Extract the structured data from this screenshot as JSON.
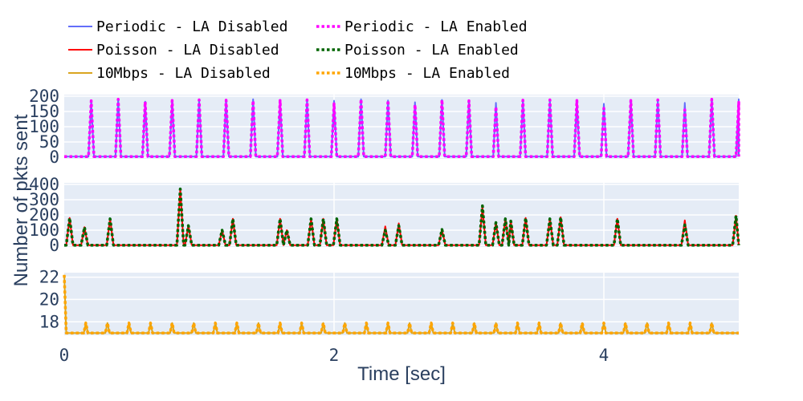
{
  "chart_data": {
    "type": "line",
    "xlabel": "Time [sec]",
    "ylabel": "Number of pkts sent",
    "xlim": [
      0,
      5
    ],
    "x_ticks": [
      0,
      2,
      4
    ],
    "grid": true,
    "legend_placement": "top",
    "plot_background": "#e5ecf6",
    "legend": [
      {
        "name": "Periodic - LA Disabled",
        "color": "#636efa",
        "dash": "solid"
      },
      {
        "name": "Periodic - LA Enabled",
        "color": "#ff00ff",
        "dash": "dot"
      },
      {
        "name": "Poisson - LA Disabled",
        "color": "#ff0000",
        "dash": "solid"
      },
      {
        "name": "Poisson - LA Enabled",
        "color": "#006400",
        "dash": "dot"
      },
      {
        "name": "10Mbps - LA Disabled",
        "color": "#daa520",
        "dash": "solid"
      },
      {
        "name": "10Mbps - LA Enabled",
        "color": "#ffa500",
        "dash": "dot"
      }
    ],
    "subplots": [
      {
        "ylim": [
          -5,
          205
        ],
        "y_ticks": [
          0,
          50,
          100,
          150,
          200
        ],
        "peak_width": 0.02,
        "baseline": 2,
        "series": [
          {
            "name": "Periodic - LA Disabled",
            "color": "#636efa",
            "dash": "solid",
            "peaks": [
              [
                0.2,
                185
              ],
              [
                0.4,
                190
              ],
              [
                0.6,
                182
              ],
              [
                0.8,
                186
              ],
              [
                1.0,
                188
              ],
              [
                1.2,
                187
              ],
              [
                1.4,
                190
              ],
              [
                1.6,
                186
              ],
              [
                1.8,
                188
              ],
              [
                2.0,
                185
              ],
              [
                2.2,
                190
              ],
              [
                2.4,
                186
              ],
              [
                2.6,
                180
              ],
              [
                2.8,
                188
              ],
              [
                3.0,
                185
              ],
              [
                3.2,
                178
              ],
              [
                3.4,
                187
              ],
              [
                3.6,
                188
              ],
              [
                3.8,
                186
              ],
              [
                4.0,
                175
              ],
              [
                4.2,
                186
              ],
              [
                4.4,
                188
              ],
              [
                4.6,
                178
              ],
              [
                4.8,
                190
              ],
              [
                5.0,
                190
              ]
            ]
          },
          {
            "name": "Periodic - LA Enabled",
            "color": "#ff00ff",
            "dash": "dot",
            "peaks": [
              [
                0.2,
                185
              ],
              [
                0.4,
                190
              ],
              [
                0.6,
                182
              ],
              [
                0.8,
                186
              ],
              [
                1.0,
                188
              ],
              [
                1.2,
                187
              ],
              [
                1.4,
                185
              ],
              [
                1.6,
                186
              ],
              [
                1.8,
                188
              ],
              [
                2.0,
                175
              ],
              [
                2.2,
                190
              ],
              [
                2.4,
                186
              ],
              [
                2.6,
                172
              ],
              [
                2.8,
                188
              ],
              [
                3.0,
                185
              ],
              [
                3.2,
                165
              ],
              [
                3.4,
                187
              ],
              [
                3.6,
                188
              ],
              [
                3.8,
                186
              ],
              [
                4.0,
                160
              ],
              [
                4.2,
                186
              ],
              [
                4.4,
                188
              ],
              [
                4.6,
                155
              ],
              [
                4.8,
                190
              ],
              [
                5.0,
                180
              ]
            ]
          }
        ]
      },
      {
        "ylim": [
          -10,
          410
        ],
        "y_ticks": [
          0,
          100,
          200,
          300,
          400
        ],
        "peak_width": 0.025,
        "baseline": 2,
        "series": [
          {
            "name": "Poisson - LA Disabled",
            "color": "#ff0000",
            "dash": "solid",
            "peaks": [
              [
                0.04,
                180
              ],
              [
                0.15,
                120
              ],
              [
                0.34,
                175
              ],
              [
                0.86,
                370
              ],
              [
                0.92,
                130
              ],
              [
                1.17,
                100
              ],
              [
                1.25,
                175
              ],
              [
                1.6,
                175
              ],
              [
                1.65,
                100
              ],
              [
                1.83,
                175
              ],
              [
                1.92,
                175
              ],
              [
                2.02,
                175
              ],
              [
                2.38,
                125
              ],
              [
                2.48,
                145
              ],
              [
                2.8,
                105
              ],
              [
                3.1,
                250
              ],
              [
                3.2,
                150
              ],
              [
                3.27,
                175
              ],
              [
                3.31,
                160
              ],
              [
                3.42,
                180
              ],
              [
                3.6,
                175
              ],
              [
                3.68,
                185
              ],
              [
                4.1,
                175
              ],
              [
                4.6,
                165
              ],
              [
                4.98,
                195
              ]
            ]
          },
          {
            "name": "Poisson - LA Enabled",
            "color": "#006400",
            "dash": "dot",
            "peaks": [
              [
                0.04,
                180
              ],
              [
                0.15,
                120
              ],
              [
                0.34,
                175
              ],
              [
                0.86,
                370
              ],
              [
                0.92,
                130
              ],
              [
                1.17,
                100
              ],
              [
                1.25,
                175
              ],
              [
                1.6,
                175
              ],
              [
                1.65,
                100
              ],
              [
                1.83,
                175
              ],
              [
                1.92,
                175
              ],
              [
                2.02,
                175
              ],
              [
                2.38,
                100
              ],
              [
                2.48,
                130
              ],
              [
                2.8,
                105
              ],
              [
                3.1,
                260
              ],
              [
                3.2,
                150
              ],
              [
                3.27,
                175
              ],
              [
                3.31,
                160
              ],
              [
                3.42,
                180
              ],
              [
                3.6,
                175
              ],
              [
                3.68,
                185
              ],
              [
                4.1,
                175
              ],
              [
                4.6,
                135
              ],
              [
                4.98,
                195
              ]
            ]
          }
        ]
      },
      {
        "ylim": [
          16.8,
          22.4
        ],
        "y_ticks": [
          18,
          20,
          22
        ],
        "peak_width": 0.015,
        "baseline": 17,
        "series": [
          {
            "name": "10Mbps - LA Disabled",
            "color": "#daa520",
            "dash": "solid",
            "start": [
              0.0,
              22.2
            ],
            "peaks": [
              [
                0.16,
                17.9
              ],
              [
                0.32,
                17.9
              ],
              [
                0.48,
                17.9
              ],
              [
                0.64,
                17.9
              ],
              [
                0.8,
                17.9
              ],
              [
                0.96,
                17.9
              ],
              [
                1.12,
                17.9
              ],
              [
                1.28,
                17.9
              ],
              [
                1.44,
                17.9
              ],
              [
                1.6,
                17.9
              ],
              [
                1.76,
                17.9
              ],
              [
                1.92,
                17.9
              ],
              [
                2.08,
                17.9
              ],
              [
                2.24,
                17.9
              ],
              [
                2.4,
                17.9
              ],
              [
                2.56,
                17.9
              ],
              [
                2.72,
                17.9
              ],
              [
                2.88,
                17.9
              ],
              [
                3.04,
                17.9
              ],
              [
                3.2,
                17.9
              ],
              [
                3.36,
                17.9
              ],
              [
                3.52,
                17.9
              ],
              [
                3.68,
                17.9
              ],
              [
                3.84,
                17.9
              ],
              [
                4.0,
                17.9
              ],
              [
                4.16,
                17.9
              ],
              [
                4.32,
                17.9
              ],
              [
                4.48,
                17.9
              ],
              [
                4.64,
                17.9
              ],
              [
                4.8,
                17.9
              ]
            ]
          },
          {
            "name": "10Mbps - LA Enabled",
            "color": "#ffa500",
            "dash": "dot",
            "start": [
              0.0,
              22.2
            ],
            "peaks": [
              [
                0.16,
                17.9
              ],
              [
                0.32,
                17.9
              ],
              [
                0.48,
                17.9
              ],
              [
                0.64,
                17.9
              ],
              [
                0.8,
                17.9
              ],
              [
                0.96,
                17.9
              ],
              [
                1.12,
                17.9
              ],
              [
                1.28,
                17.9
              ],
              [
                1.44,
                17.9
              ],
              [
                1.6,
                17.9
              ],
              [
                1.76,
                17.9
              ],
              [
                1.92,
                17.9
              ],
              [
                2.08,
                17.9
              ],
              [
                2.24,
                17.9
              ],
              [
                2.4,
                17.9
              ],
              [
                2.56,
                17.9
              ],
              [
                2.72,
                17.9
              ],
              [
                2.88,
                17.9
              ],
              [
                3.04,
                17.9
              ],
              [
                3.2,
                17.9
              ],
              [
                3.36,
                17.9
              ],
              [
                3.52,
                17.9
              ],
              [
                3.68,
                17.9
              ],
              [
                3.84,
                17.9
              ],
              [
                4.0,
                17.9
              ],
              [
                4.16,
                17.9
              ],
              [
                4.32,
                17.9
              ],
              [
                4.48,
                17.9
              ],
              [
                4.64,
                17.9
              ],
              [
                4.8,
                17.9
              ]
            ]
          }
        ]
      }
    ]
  }
}
